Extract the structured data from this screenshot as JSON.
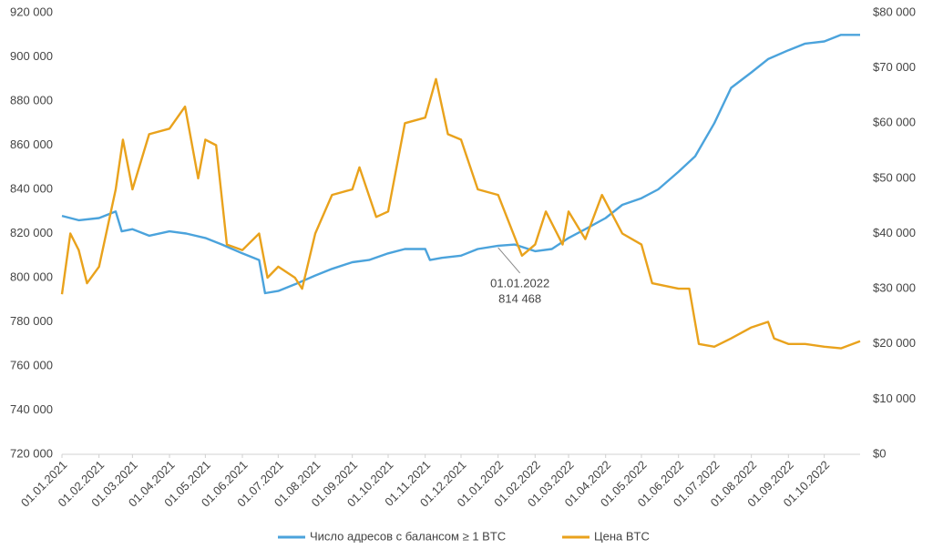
{
  "chart_data": {
    "type": "line",
    "xlim": [
      "01.01.2021",
      "31.10.2022"
    ],
    "xticks": [
      "01.01.2021",
      "01.02.2021",
      "01.03.2021",
      "01.04.2021",
      "01.05.2021",
      "01.06.2021",
      "01.07.2021",
      "01.08.2021",
      "01.09.2021",
      "01.10.2021",
      "01.11.2021",
      "01.12.2021",
      "01.01.2022",
      "01.02.2022",
      "01.03.2022",
      "01.04.2022",
      "01.05.2022",
      "01.06.2022",
      "01.07.2022",
      "01.08.2022",
      "01.09.2022",
      "01.10.2022"
    ],
    "ylim": [
      720000,
      920000
    ],
    "yticks": [
      {
        "value": 720000,
        "label": "720 000"
      },
      {
        "value": 740000,
        "label": "740 000"
      },
      {
        "value": 760000,
        "label": "760 000"
      },
      {
        "value": 780000,
        "label": "780 000"
      },
      {
        "value": 800000,
        "label": "800 000"
      },
      {
        "value": 820000,
        "label": "820 000"
      },
      {
        "value": 840000,
        "label": "840 000"
      },
      {
        "value": 860000,
        "label": "860 000"
      },
      {
        "value": 880000,
        "label": "880 000"
      },
      {
        "value": 900000,
        "label": "900 000"
      },
      {
        "value": 920000,
        "label": "920 000"
      }
    ],
    "y2lim": [
      0,
      80000
    ],
    "y2ticks": [
      {
        "value": 0,
        "label": "$0"
      },
      {
        "value": 10000,
        "label": "$10 000"
      },
      {
        "value": 20000,
        "label": "$20 000"
      },
      {
        "value": 30000,
        "label": "$30 000"
      },
      {
        "value": 40000,
        "label": "$40 000"
      },
      {
        "value": 50000,
        "label": "$50 000"
      },
      {
        "value": 60000,
        "label": "$60 000"
      },
      {
        "value": 70000,
        "label": "$70 000"
      },
      {
        "value": 80000,
        "label": "$80 000"
      }
    ],
    "series": [
      {
        "name": "Число адресов с балансом ≥ 1 BTC",
        "color": "#4ba3dc",
        "x": [
          "01.01.2021",
          "15.01.2021",
          "01.02.2021",
          "15.02.2021",
          "20.02.2021",
          "01.03.2021",
          "15.03.2021",
          "01.04.2021",
          "15.04.2021",
          "01.05.2021",
          "15.05.2021",
          "01.06.2021",
          "15.06.2021",
          "20.06.2021",
          "01.07.2021",
          "15.07.2021",
          "01.08.2021",
          "15.08.2021",
          "01.09.2021",
          "15.09.2021",
          "01.10.2021",
          "15.10.2021",
          "01.11.2021",
          "05.11.2021",
          "15.11.2021",
          "01.12.2021",
          "15.12.2021",
          "01.01.2022",
          "15.01.2022",
          "01.02.2022",
          "15.02.2022",
          "01.03.2022",
          "15.03.2022",
          "01.04.2022",
          "15.04.2022",
          "01.05.2022",
          "15.05.2022",
          "01.06.2022",
          "15.06.2022",
          "01.07.2022",
          "15.07.2022",
          "01.08.2022",
          "15.08.2022",
          "01.09.2022",
          "15.09.2022",
          "01.10.2022",
          "15.10.2022",
          "31.10.2022"
        ],
        "values": [
          828000,
          826000,
          827000,
          830000,
          821000,
          822000,
          819000,
          821000,
          820000,
          818000,
          815000,
          811000,
          808000,
          793000,
          794000,
          797000,
          801000,
          804000,
          807000,
          808000,
          811000,
          813000,
          813000,
          808000,
          809000,
          810000,
          813000,
          814468,
          815000,
          812000,
          813000,
          818000,
          822000,
          827000,
          833000,
          836000,
          840000,
          848000,
          855000,
          870000,
          886000,
          893000,
          899000,
          903000,
          906000,
          907000,
          910000,
          910000
        ]
      },
      {
        "name": "Цена BTC",
        "color": "#e9a21c",
        "axis": "y2",
        "x": [
          "01.01.2021",
          "08.01.2021",
          "15.01.2021",
          "22.01.2021",
          "01.02.2021",
          "15.02.2021",
          "21.02.2021",
          "01.03.2021",
          "15.03.2021",
          "01.04.2021",
          "14.04.2021",
          "25.04.2021",
          "01.05.2021",
          "10.05.2021",
          "19.05.2021",
          "01.06.2021",
          "15.06.2021",
          "22.06.2021",
          "01.07.2021",
          "15.07.2021",
          "21.07.2021",
          "01.08.2021",
          "15.08.2021",
          "01.09.2021",
          "07.09.2021",
          "21.09.2021",
          "01.10.2021",
          "15.10.2021",
          "01.11.2021",
          "10.11.2021",
          "20.11.2021",
          "01.12.2021",
          "15.12.2021",
          "01.01.2022",
          "21.01.2022",
          "01.02.2022",
          "10.02.2022",
          "24.02.2022",
          "01.03.2022",
          "15.03.2022",
          "29.03.2022",
          "15.04.2022",
          "01.05.2022",
          "10.05.2022",
          "01.06.2022",
          "10.06.2022",
          "18.06.2022",
          "01.07.2022",
          "15.07.2022",
          "01.08.2022",
          "15.08.2022",
          "20.08.2022",
          "01.09.2022",
          "15.09.2022",
          "01.10.2022",
          "15.10.2022",
          "31.10.2022"
        ],
        "values": [
          29000,
          40000,
          37000,
          31000,
          34000,
          48000,
          57000,
          48000,
          58000,
          59000,
          63000,
          50000,
          57000,
          56000,
          38000,
          37000,
          40000,
          32000,
          34000,
          32000,
          30000,
          40000,
          47000,
          48000,
          52000,
          43000,
          44000,
          60000,
          61000,
          68000,
          58000,
          57000,
          48000,
          47000,
          36000,
          38000,
          44000,
          38000,
          44000,
          39000,
          47000,
          40000,
          38000,
          31000,
          30000,
          30000,
          20000,
          19500,
          21000,
          23000,
          24000,
          21000,
          20000,
          20000,
          19500,
          19200,
          20500
        ]
      }
    ],
    "annotation": {
      "date": "01.01.2022",
      "value": 814468,
      "label": "814 468"
    }
  }
}
